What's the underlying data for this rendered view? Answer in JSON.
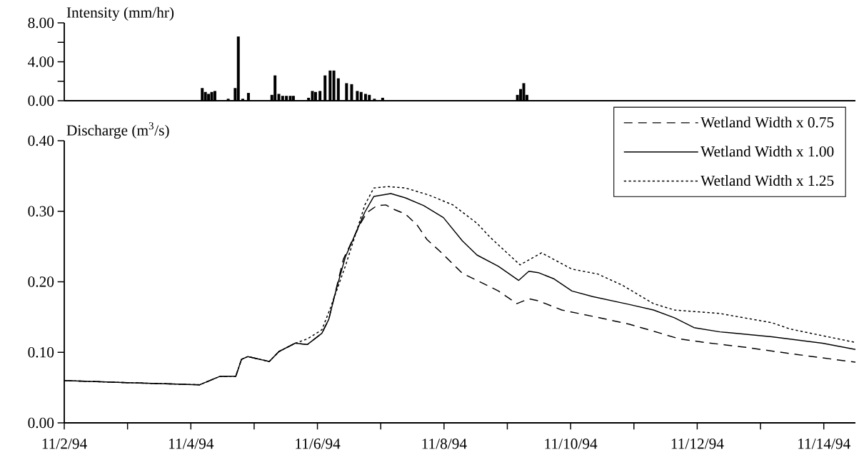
{
  "chart_data": [
    {
      "type": "bar",
      "ylabel": "Intensity  (mm/hr)",
      "color": "#000000",
      "xlim": [
        "1994-11-02",
        "1994-11-14T12:00"
      ],
      "ylim": [
        0,
        8
      ],
      "tick_labels": "y",
      "yticks": [
        {
          "value": 0,
          "label": "0.00"
        },
        {
          "value": 2,
          "label": null
        },
        {
          "value": 4,
          "label": "4.00"
        },
        {
          "value": 6,
          "label": null
        },
        {
          "value": 8,
          "label": "8.00"
        }
      ],
      "x": [
        "1994-11-04T04:19",
        "1994-11-04T05:31",
        "1994-11-04T06:43",
        "1994-11-04T07:55",
        "1994-11-04T09:07",
        "1994-11-04T14:10",
        "1994-11-04T16:48",
        "1994-11-04T18:00",
        "1994-11-04T19:41",
        "1994-11-04T21:50",
        "1994-11-05T04:48",
        "1994-11-05T06:43",
        "1994-11-05T07:55",
        "1994-11-05T09:22",
        "1994-11-05T10:48",
        "1994-11-05T12:14",
        "1994-11-05T13:41",
        "1994-11-05T14:53",
        "1994-11-05T20:38",
        "1994-11-05T22:05",
        "1994-11-05T23:17",
        "1994-11-06T00:58",
        "1994-11-06T02:53",
        "1994-11-06T04:48",
        "1994-11-06T06:14",
        "1994-11-06T07:55",
        "1994-11-06T11:02",
        "1994-11-06T12:58",
        "1994-11-06T15:07",
        "1994-11-06T16:34",
        "1994-11-06T18:14",
        "1994-11-06T19:41",
        "1994-11-06T21:36",
        "1994-11-07T00:43",
        "1994-11-09T03:50",
        "1994-11-09T05:02",
        "1994-11-09T06:14",
        "1994-11-09T07:26"
      ],
      "values": [
        1.3,
        0.9,
        0.7,
        0.9,
        1.0,
        0.2,
        1.3,
        6.6,
        0.2,
        0.8,
        null,
        0.6,
        2.6,
        0.7,
        0.5,
        0.5,
        0.5,
        0.5,
        0.3,
        1.0,
        0.9,
        1.0,
        2.6,
        3.1,
        3.1,
        2.3,
        1.8,
        1.7,
        1.0,
        0.9,
        0.7,
        0.6,
        0.2,
        0.3,
        0.6,
        1.2,
        1.8,
        0.6
      ]
    },
    {
      "type": "line",
      "ylabel": "Discharge (m$^{3}$/s)",
      "xlim": [
        "1994-11-02",
        "1994-11-14T12:00"
      ],
      "ylim": [
        0,
        0.4
      ],
      "legend": "top right",
      "xticks": [
        {
          "value": "1994-11-02",
          "label": "11/2/94"
        },
        {
          "value": "1994-11-03",
          "label": null
        },
        {
          "value": "1994-11-04",
          "label": "11/4/94"
        },
        {
          "value": "1994-11-05",
          "label": null
        },
        {
          "value": "1994-11-06",
          "label": "11/6/94"
        },
        {
          "value": "1994-11-07",
          "label": null
        },
        {
          "value": "1994-11-08",
          "label": "11/8/94"
        },
        {
          "value": "1994-11-09",
          "label": null
        },
        {
          "value": "1994-11-10",
          "label": "11/10/94"
        },
        {
          "value": "1994-11-11",
          "label": null
        },
        {
          "value": "1994-11-12",
          "label": "11/12/94"
        },
        {
          "value": "1994-11-13",
          "label": null
        },
        {
          "value": "1994-11-14",
          "label": "11/14/94"
        }
      ],
      "yticks": [
        {
          "value": 0,
          "label": "0.00"
        },
        {
          "value": 0.1,
          "label": "0.10"
        },
        {
          "value": 0.2,
          "label": "0.20"
        },
        {
          "value": 0.3,
          "label": "0.30"
        },
        {
          "value": 0.4,
          "label": "0.40"
        }
      ],
      "series": [
        {
          "name": "Wetland Width x 0.75",
          "color": "#000000",
          "line_style": "dashed",
          "x": [
            "1994-11-02T00:00",
            "1994-11-03T00:00",
            "1994-11-04T03:22",
            "1994-11-04T11:02",
            "1994-11-04T17:02",
            "1994-11-04T19:12",
            "1994-11-04T21:36",
            "1994-11-05T05:46",
            "1994-11-05T09:22",
            "1994-11-05T15:36",
            "1994-11-05T20:10",
            "1994-11-06T01:41",
            "1994-11-06T04:19",
            "1994-11-06T09:50",
            "1994-11-06T16:05",
            "1994-11-06T18:43",
            "1994-11-06T22:34",
            "1994-11-07T01:55",
            "1994-11-07T04:48",
            "1994-11-07T09:22",
            "1994-11-07T13:41",
            "1994-11-07T17:31",
            "1994-11-07T22:48",
            "1994-11-08T06:58",
            "1994-11-08T12:29",
            "1994-11-08T20:38",
            "1994-11-09T03:36",
            "1994-11-09T08:10",
            "1994-11-09T11:46",
            "1994-11-09T20:38",
            "1994-11-10T08:24",
            "1994-11-10T22:05",
            "1994-11-11T07:26",
            "1994-11-11T17:17",
            "1994-11-12T02:53",
            "1994-11-12T18:29",
            "1994-11-13T13:41",
            "1994-11-14T12:00"
          ],
          "values": [
            0.06,
            0.057,
            0.054,
            0.066,
            0.066,
            0.09,
            0.094,
            0.087,
            0.101,
            0.113,
            0.111,
            0.127,
            0.147,
            0.232,
            0.281,
            0.298,
            0.308,
            0.309,
            0.303,
            0.296,
            0.281,
            0.26,
            0.242,
            0.212,
            0.202,
            0.187,
            0.169,
            0.176,
            0.173,
            0.16,
            0.151,
            0.14,
            0.13,
            0.119,
            0.114,
            0.107,
            0.097,
            0.086
          ]
        },
        {
          "name": "Wetland Width x 1.00",
          "color": "#000000",
          "line_style": "solid",
          "x": [
            "1994-11-02T00:00",
            "1994-11-03T00:00",
            "1994-11-04T03:22",
            "1994-11-04T11:02",
            "1994-11-04T17:02",
            "1994-11-04T19:12",
            "1994-11-04T21:36",
            "1994-11-05T05:46",
            "1994-11-05T09:22",
            "1994-11-05T15:36",
            "1994-11-05T20:10",
            "1994-11-06T01:41",
            "1994-11-06T04:19",
            "1994-11-06T06:58",
            "1994-11-06T10:34",
            "1994-11-06T14:24",
            "1994-11-06T18:00",
            "1994-11-06T21:22",
            "1994-11-07T03:50",
            "1994-11-07T09:22",
            "1994-11-07T16:19",
            "1994-11-07T23:46",
            "1994-11-08T06:58",
            "1994-11-08T12:29",
            "1994-11-08T20:38",
            "1994-11-09T04:19",
            "1994-11-09T08:10",
            "1994-11-09T11:46",
            "1994-11-09T17:46",
            "1994-11-10T00:29",
            "1994-11-10T08:24",
            "1994-11-10T22:05",
            "1994-11-11T07:26",
            "1994-11-11T15:22",
            "1994-11-11T22:48",
            "1994-11-12T08:38",
            "1994-11-13T04:19",
            "1994-11-13T23:31",
            "1994-11-14T12:00"
          ],
          "values": [
            0.06,
            0.057,
            0.054,
            0.066,
            0.066,
            0.09,
            0.094,
            0.087,
            0.101,
            0.113,
            0.111,
            0.127,
            0.147,
            0.187,
            0.235,
            0.268,
            0.299,
            0.321,
            0.325,
            0.319,
            0.308,
            0.291,
            0.258,
            0.238,
            0.222,
            0.202,
            0.215,
            0.213,
            0.204,
            0.187,
            0.179,
            0.168,
            0.16,
            0.149,
            0.135,
            0.129,
            0.122,
            0.113,
            0.104
          ]
        },
        {
          "name": "Wetland Width x 1.25",
          "color": "#000000",
          "line_style": "dotted",
          "x": [
            "1994-11-02T00:00",
            "1994-11-03T00:00",
            "1994-11-04T03:22",
            "1994-11-04T11:02",
            "1994-11-04T17:02",
            "1994-11-04T19:12",
            "1994-11-04T21:36",
            "1994-11-05T05:46",
            "1994-11-05T09:22",
            "1994-11-05T15:36",
            "1994-11-05T20:10",
            "1994-11-06T01:41",
            "1994-11-06T05:02",
            "1994-11-06T10:34",
            "1994-11-06T18:00",
            "1994-11-06T21:22",
            "1994-11-07T02:53",
            "1994-11-07T09:22",
            "1994-11-07T18:14",
            "1994-11-08T03:22",
            "1994-11-08T12:29",
            "1994-11-08T17:31",
            "1994-11-09T04:48",
            "1994-11-09T12:58",
            "1994-11-10T00:29",
            "1994-11-10T10:19",
            "1994-11-10T19:41",
            "1994-11-11T07:26",
            "1994-11-11T15:22",
            "1994-11-12T08:38",
            "1994-11-13T04:19",
            "1994-11-13T11:17",
            "1994-11-14T12:00"
          ],
          "values": [
            0.06,
            0.057,
            0.054,
            0.066,
            0.066,
            0.09,
            0.094,
            0.087,
            0.101,
            0.113,
            0.119,
            0.132,
            0.164,
            0.222,
            0.309,
            0.333,
            0.335,
            0.333,
            0.323,
            0.309,
            0.283,
            0.263,
            0.224,
            0.241,
            0.218,
            0.211,
            0.195,
            0.169,
            0.16,
            0.155,
            0.142,
            0.133,
            0.114
          ]
        }
      ]
    }
  ]
}
